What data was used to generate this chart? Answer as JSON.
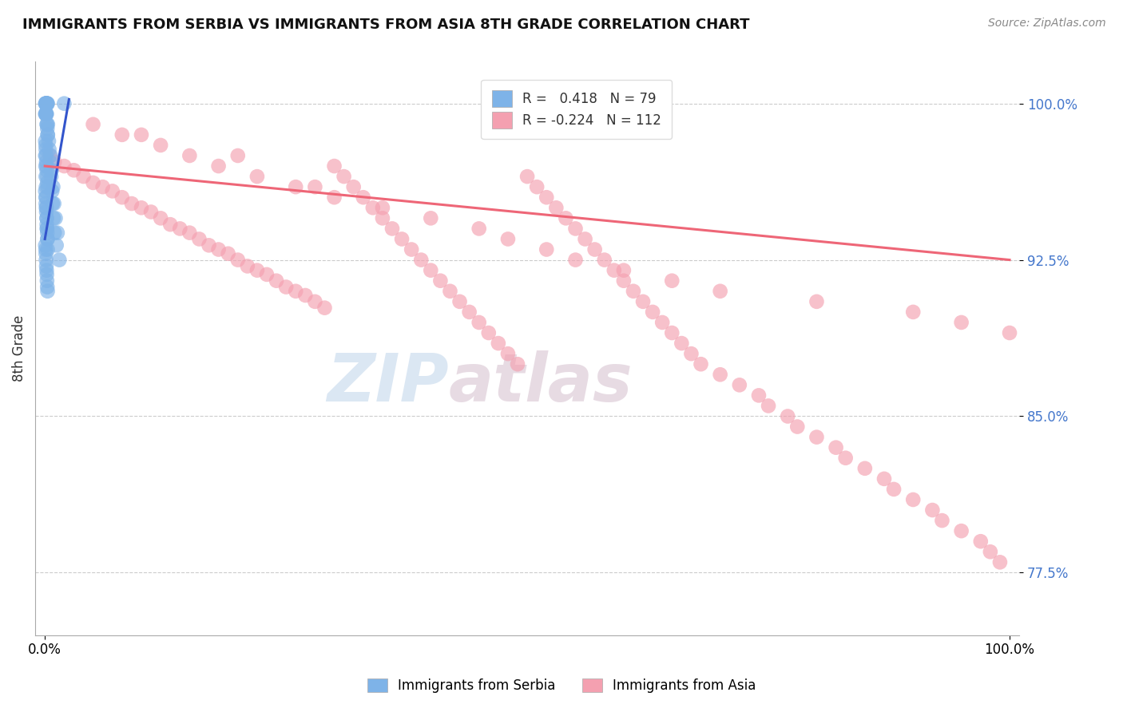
{
  "title": "IMMIGRANTS FROM SERBIA VS IMMIGRANTS FROM ASIA 8TH GRADE CORRELATION CHART",
  "source": "Source: ZipAtlas.com",
  "xlabel_serbia": "Immigrants from Serbia",
  "xlabel_asia": "Immigrants from Asia",
  "ylabel": "8th Grade",
  "xlim": [
    -1.0,
    101.0
  ],
  "ylim": [
    74.5,
    102.0
  ],
  "yticks": [
    77.5,
    85.0,
    92.5,
    100.0
  ],
  "r_serbia": 0.418,
  "n_serbia": 79,
  "r_asia": -0.224,
  "n_asia": 112,
  "color_serbia": "#7EB3E8",
  "color_asia": "#F4A0B0",
  "trendline_serbia": "#3355CC",
  "trendline_asia": "#EE6677",
  "background_color": "#FFFFFF",
  "grid_color": "#CCCCCC",
  "serbia_x": [
    0.05,
    0.08,
    0.1,
    0.12,
    0.15,
    0.18,
    0.2,
    0.22,
    0.25,
    0.28,
    0.05,
    0.08,
    0.1,
    0.12,
    0.15,
    0.18,
    0.2,
    0.22,
    0.25,
    0.28,
    0.05,
    0.08,
    0.1,
    0.12,
    0.15,
    0.18,
    0.2,
    0.22,
    0.25,
    0.28,
    0.05,
    0.08,
    0.1,
    0.12,
    0.15,
    0.18,
    0.2,
    0.22,
    0.25,
    0.28,
    0.05,
    0.08,
    0.1,
    0.12,
    0.15,
    0.18,
    0.2,
    0.22,
    0.25,
    0.28,
    0.05,
    0.08,
    0.1,
    0.12,
    0.15,
    0.18,
    0.2,
    0.22,
    0.25,
    0.28,
    0.3,
    0.45,
    0.55,
    0.65,
    0.75,
    0.8,
    0.9,
    1.0,
    1.2,
    1.5,
    0.3,
    0.4,
    0.6,
    0.7,
    0.85,
    0.95,
    1.1,
    1.3,
    2.0
  ],
  "serbia_y": [
    100.0,
    100.0,
    100.0,
    100.0,
    100.0,
    100.0,
    100.0,
    100.0,
    100.0,
    100.0,
    99.5,
    99.5,
    99.5,
    99.5,
    99.5,
    99.5,
    99.0,
    99.0,
    98.8,
    98.5,
    98.2,
    98.0,
    97.8,
    97.5,
    97.2,
    97.0,
    96.8,
    96.5,
    96.2,
    96.0,
    95.8,
    95.5,
    95.2,
    95.0,
    94.8,
    94.5,
    94.2,
    94.0,
    93.8,
    93.5,
    93.2,
    93.0,
    92.8,
    92.5,
    92.2,
    92.0,
    91.8,
    91.5,
    91.2,
    91.0,
    97.5,
    97.0,
    96.5,
    96.0,
    95.5,
    95.0,
    94.5,
    94.0,
    93.5,
    93.0,
    98.5,
    97.8,
    97.2,
    96.5,
    95.8,
    95.2,
    94.5,
    93.8,
    93.2,
    92.5,
    99.0,
    98.2,
    97.5,
    96.8,
    96.0,
    95.2,
    94.5,
    93.8,
    100.0
  ],
  "asia_x": [
    0.5,
    1.0,
    2.0,
    3.0,
    4.0,
    5.0,
    6.0,
    7.0,
    8.0,
    9.0,
    10.0,
    11.0,
    12.0,
    13.0,
    14.0,
    15.0,
    16.0,
    17.0,
    18.0,
    19.0,
    20.0,
    21.0,
    22.0,
    23.0,
    24.0,
    25.0,
    26.0,
    27.0,
    28.0,
    29.0,
    30.0,
    31.0,
    32.0,
    33.0,
    34.0,
    35.0,
    36.0,
    37.0,
    38.0,
    39.0,
    40.0,
    41.0,
    42.0,
    43.0,
    44.0,
    45.0,
    46.0,
    47.0,
    48.0,
    49.0,
    50.0,
    51.0,
    52.0,
    53.0,
    54.0,
    55.0,
    56.0,
    57.0,
    58.0,
    59.0,
    60.0,
    61.0,
    62.0,
    63.0,
    64.0,
    65.0,
    66.0,
    67.0,
    68.0,
    70.0,
    72.0,
    74.0,
    75.0,
    77.0,
    78.0,
    80.0,
    82.0,
    83.0,
    85.0,
    87.0,
    88.0,
    90.0,
    92.0,
    93.0,
    95.0,
    97.0,
    98.0,
    99.0,
    8.0,
    12.0,
    15.0,
    18.0,
    22.0,
    26.0,
    30.0,
    35.0,
    40.0,
    45.0,
    48.0,
    52.0,
    55.0,
    60.0,
    65.0,
    70.0,
    80.0,
    90.0,
    95.0,
    100.0,
    5.0,
    10.0,
    20.0,
    28.0
  ],
  "asia_y": [
    97.5,
    97.2,
    97.0,
    96.8,
    96.5,
    96.2,
    96.0,
    95.8,
    95.5,
    95.2,
    95.0,
    94.8,
    94.5,
    94.2,
    94.0,
    93.8,
    93.5,
    93.2,
    93.0,
    92.8,
    92.5,
    92.2,
    92.0,
    91.8,
    91.5,
    91.2,
    91.0,
    90.8,
    90.5,
    90.2,
    97.0,
    96.5,
    96.0,
    95.5,
    95.0,
    94.5,
    94.0,
    93.5,
    93.0,
    92.5,
    92.0,
    91.5,
    91.0,
    90.5,
    90.0,
    89.5,
    89.0,
    88.5,
    88.0,
    87.5,
    96.5,
    96.0,
    95.5,
    95.0,
    94.5,
    94.0,
    93.5,
    93.0,
    92.5,
    92.0,
    91.5,
    91.0,
    90.5,
    90.0,
    89.5,
    89.0,
    88.5,
    88.0,
    87.5,
    87.0,
    86.5,
    86.0,
    85.5,
    85.0,
    84.5,
    84.0,
    83.5,
    83.0,
    82.5,
    82.0,
    81.5,
    81.0,
    80.5,
    80.0,
    79.5,
    79.0,
    78.5,
    78.0,
    98.5,
    98.0,
    97.5,
    97.0,
    96.5,
    96.0,
    95.5,
    95.0,
    94.5,
    94.0,
    93.5,
    93.0,
    92.5,
    92.0,
    91.5,
    91.0,
    90.5,
    90.0,
    89.5,
    89.0,
    99.0,
    98.5,
    97.5,
    96.0
  ],
  "watermark_zip": "ZIP",
  "watermark_atlas": "atlas"
}
